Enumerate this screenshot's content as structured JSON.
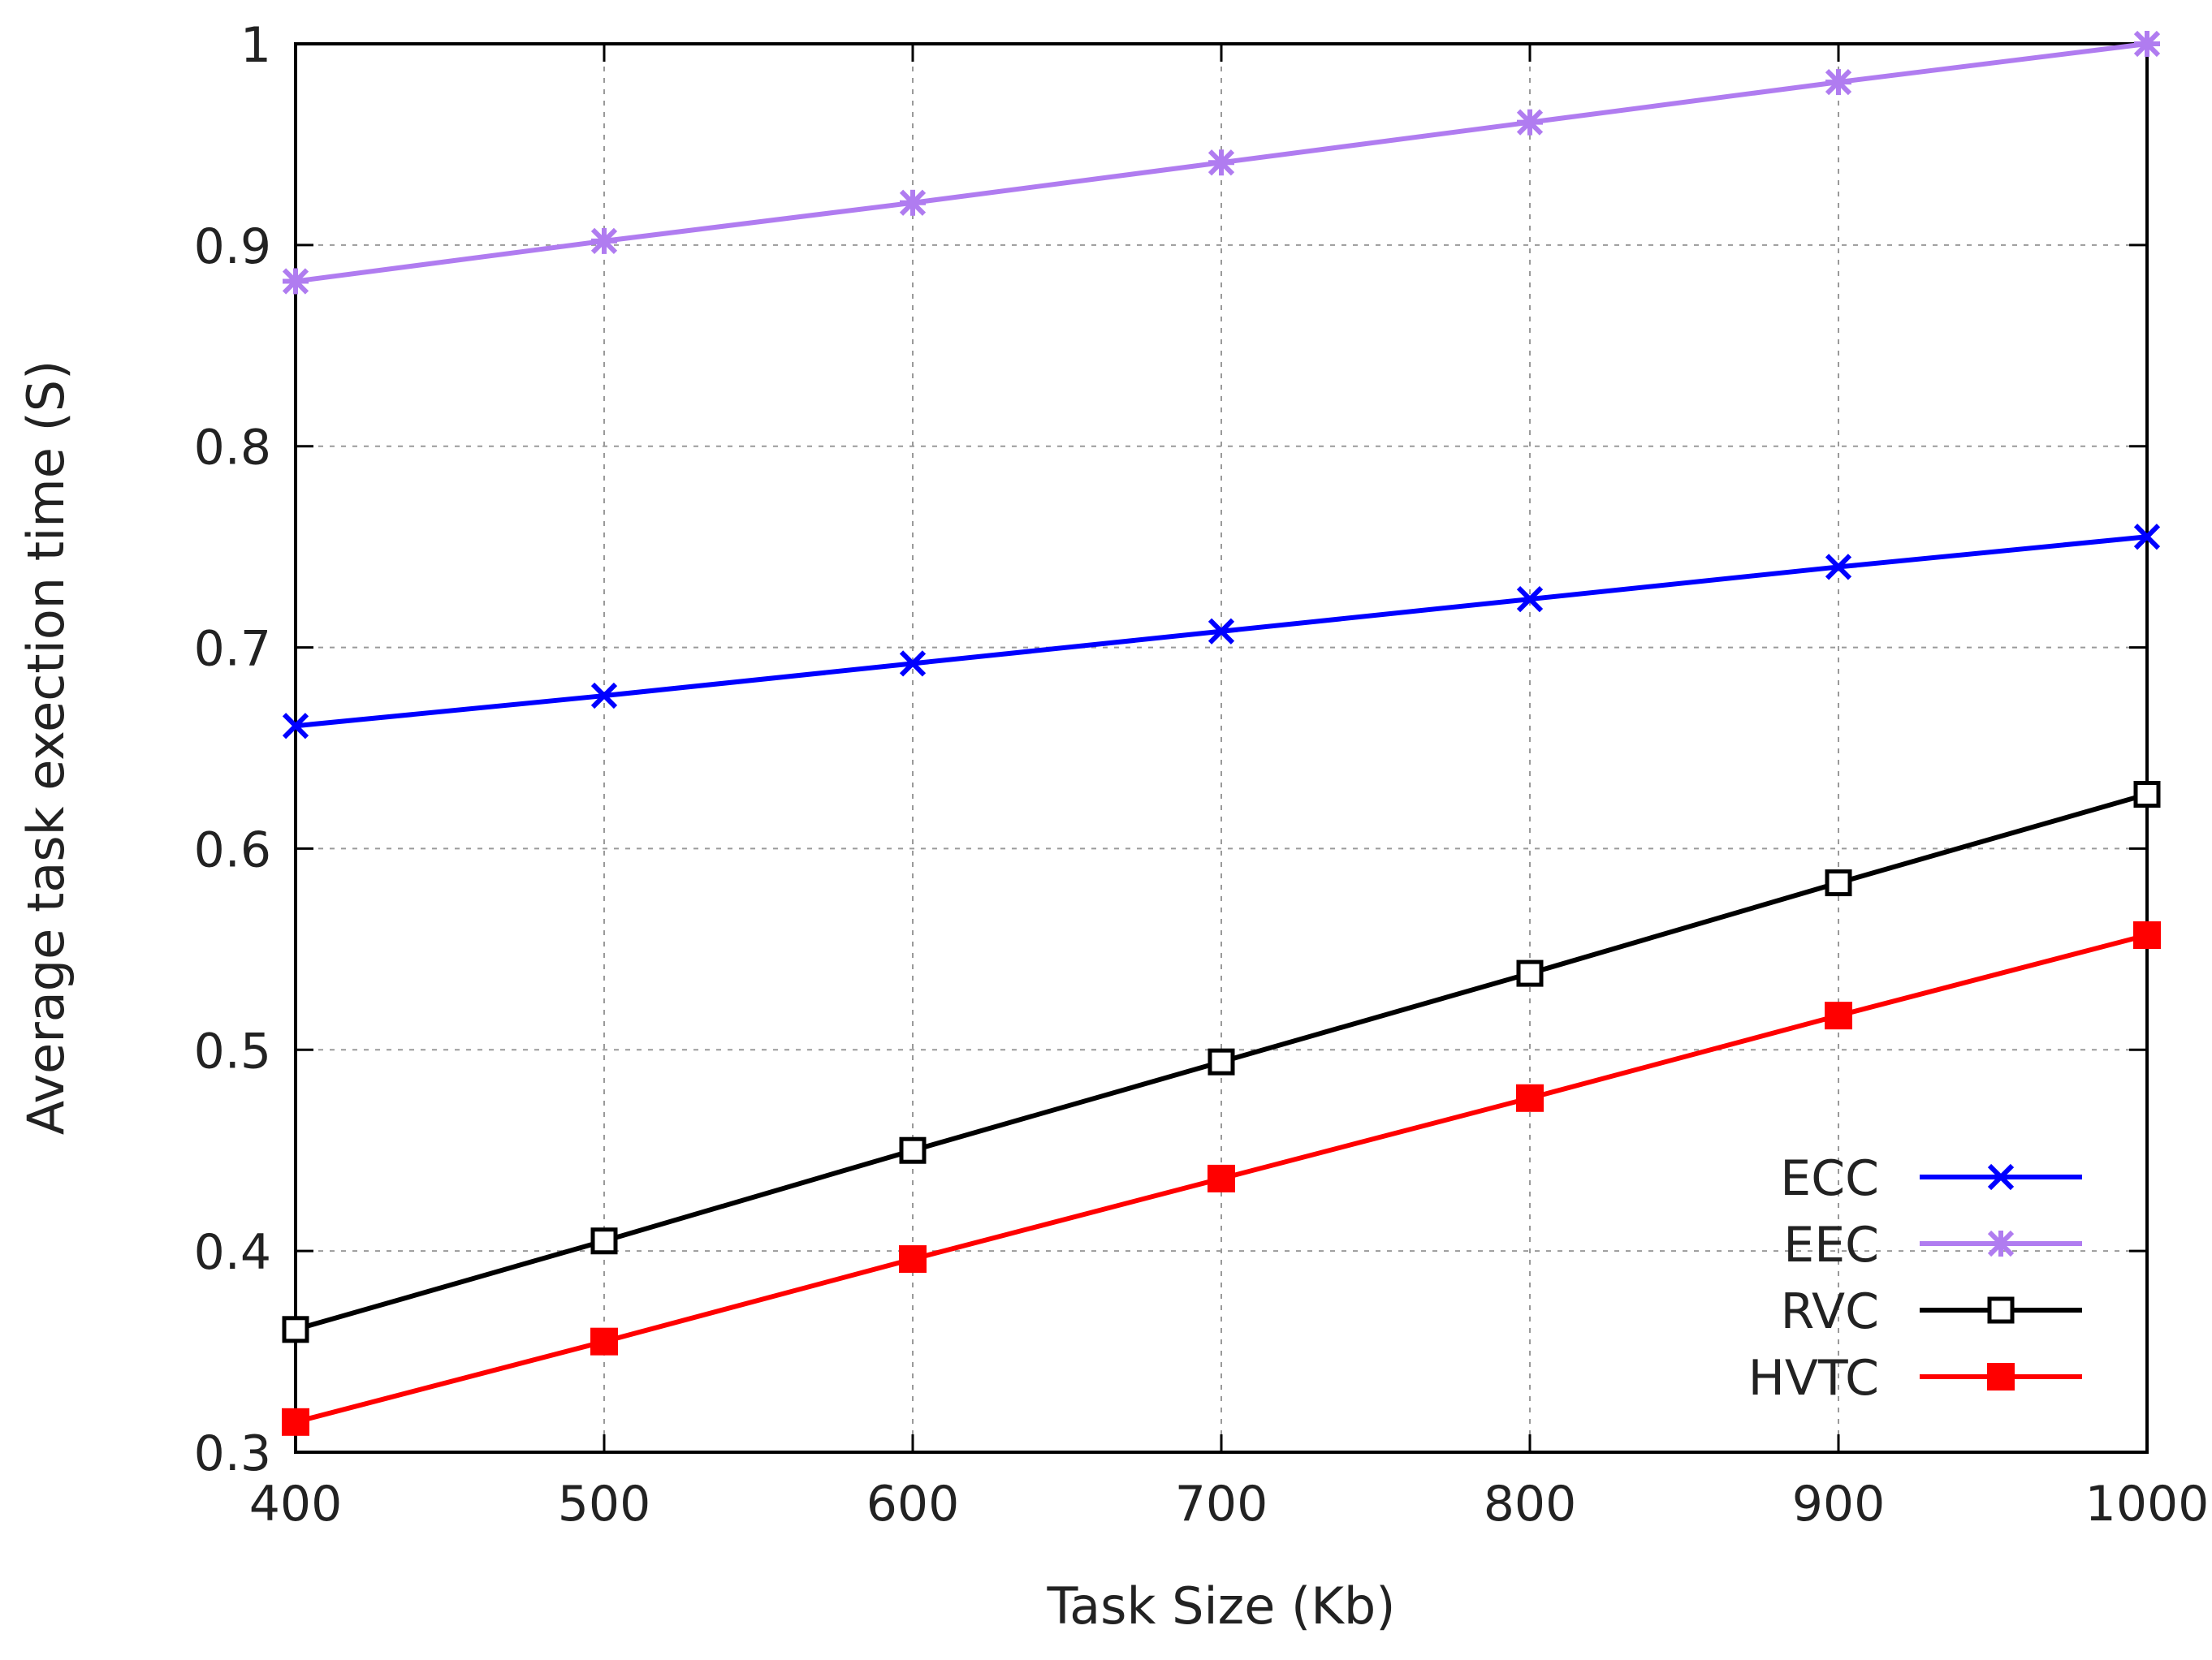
{
  "chart_data": {
    "type": "line",
    "title": "",
    "xlabel": "Task Size (Kb)",
    "ylabel": "Average task exection time (S)",
    "xlim": [
      400,
      1000
    ],
    "ylim": [
      0.3,
      1.0
    ],
    "x": [
      400,
      500,
      600,
      700,
      800,
      900,
      1000
    ],
    "x_ticks": [
      "400",
      "500",
      "600",
      "700",
      "800",
      "900",
      "1000"
    ],
    "y_ticks": [
      {
        "value": 0.3,
        "label": "0.3"
      },
      {
        "value": 0.4,
        "label": "0.4"
      },
      {
        "value": 0.5,
        "label": "0.5"
      },
      {
        "value": 0.6,
        "label": "0.6"
      },
      {
        "value": 0.7,
        "label": "0.7"
      },
      {
        "value": 0.8,
        "label": "0.8"
      },
      {
        "value": 0.9,
        "label": "0.9"
      },
      {
        "value": 1.0,
        "label": "1"
      }
    ],
    "grid": true,
    "legend_position": "bottom-right",
    "series": [
      {
        "name": "ECC",
        "color": "#0000ff",
        "marker": "x-icon",
        "values": [
          0.661,
          0.676,
          0.692,
          0.708,
          0.724,
          0.74,
          0.755
        ]
      },
      {
        "name": "EEC",
        "color": "#b07cf0",
        "marker": "asterisk-icon",
        "values": [
          0.882,
          0.902,
          0.921,
          0.941,
          0.961,
          0.981,
          1.0
        ]
      },
      {
        "name": "RVC",
        "color": "#000000",
        "marker": "open-square-icon",
        "values": [
          0.361,
          0.405,
          0.45,
          0.494,
          0.538,
          0.583,
          0.627
        ]
      },
      {
        "name": "HVTC",
        "color": "#ff0000",
        "marker": "filled-square-icon",
        "values": [
          0.315,
          0.355,
          0.396,
          0.436,
          0.476,
          0.517,
          0.557
        ]
      }
    ]
  }
}
